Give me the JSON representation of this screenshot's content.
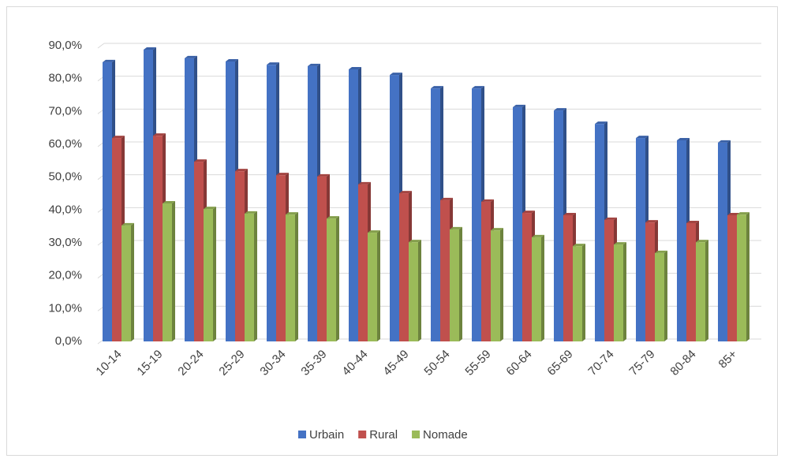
{
  "chart_data": {
    "type": "bar3d",
    "categories": [
      "10-14",
      "15-19",
      "20-24",
      "25-29",
      "30-34",
      "35-39",
      "40-44",
      "45-49",
      "50-54",
      "55-59",
      "60-64",
      "65-69",
      "70-74",
      "75-79",
      "80-84",
      "85+"
    ],
    "series": [
      {
        "name": "Urbain",
        "color": "#4472c4",
        "values": [
          85.0,
          88.8,
          86.2,
          85.2,
          84.2,
          83.8,
          82.8,
          81.1,
          77.0,
          77.0,
          71.3,
          70.3,
          66.2,
          61.9,
          61.2,
          60.5
        ]
      },
      {
        "name": "Rural",
        "color": "#c0504d",
        "values": [
          61.9,
          62.6,
          54.7,
          51.8,
          50.6,
          50.2,
          47.8,
          45.1,
          43.0,
          42.5,
          39.1,
          38.4,
          37.0,
          36.2,
          36.0,
          38.4
        ]
      },
      {
        "name": "Nomade",
        "color": "#9bbb59",
        "values": [
          35.3,
          42.0,
          40.3,
          38.9,
          38.6,
          37.4,
          33.1,
          30.2,
          34.1,
          33.8,
          31.7,
          29.0,
          29.5,
          26.9,
          30.2,
          38.6
        ]
      }
    ],
    "ylim": [
      0,
      90
    ],
    "yticks": [
      {
        "value": 0,
        "label": "0,0%"
      },
      {
        "value": 10,
        "label": "10,0%"
      },
      {
        "value": 20,
        "label": "20,0%"
      },
      {
        "value": 30,
        "label": "30,0%"
      },
      {
        "value": 40,
        "label": "40,0%"
      },
      {
        "value": 50,
        "label": "50,0%"
      },
      {
        "value": 60,
        "label": "60,0%"
      },
      {
        "value": 70,
        "label": "70,0%"
      },
      {
        "value": 80,
        "label": "80,0%"
      },
      {
        "value": 90,
        "label": "90,0%"
      }
    ],
    "grid": true,
    "legend": "bottom"
  }
}
